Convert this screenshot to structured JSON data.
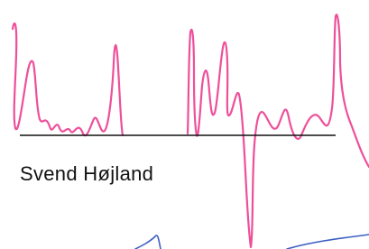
{
  "signature": {
    "name": "Svend Højland"
  }
}
